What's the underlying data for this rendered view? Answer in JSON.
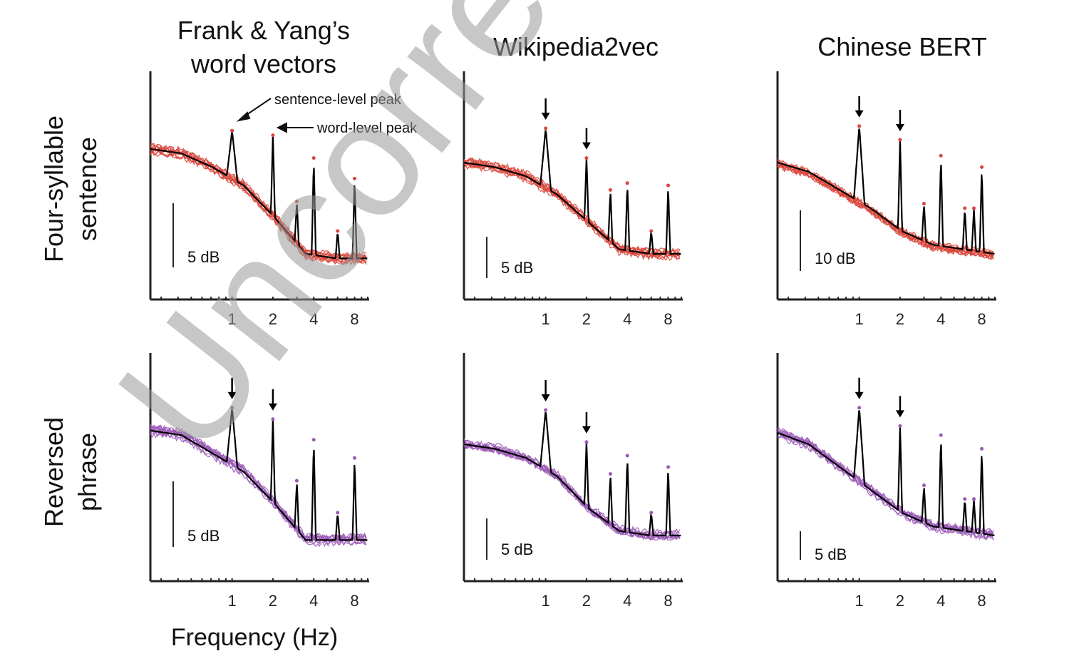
{
  "watermark": "Uncorrected",
  "xlabel": "Frequency (Hz)",
  "columns": [
    {
      "title_lines": [
        "Frank & Yang’s",
        "word vectors"
      ]
    },
    {
      "title_lines": [
        "Wikipedia2vec"
      ]
    },
    {
      "title_lines": [
        "Chinese BERT"
      ]
    }
  ],
  "rows": [
    {
      "label_lines": [
        "Four-syllable",
        "sentence"
      ],
      "color": "#d9453a"
    },
    {
      "label_lines": [
        "Reversed",
        "phrase"
      ],
      "color": "#9b59b6"
    }
  ],
  "annotations": {
    "sentence_peak": "sentence-level peak",
    "word_peak": "word-level peak"
  },
  "chart_data": [
    {
      "type": "line",
      "row": "Four-syllable sentence",
      "column": "Frank & Yang’s word vectors",
      "x_ticks": [
        "1",
        "2",
        "4",
        "8"
      ],
      "xscale": "log",
      "peaks_hz": [
        1,
        2,
        3,
        4,
        6,
        8
      ],
      "scale_bar": "5 dB",
      "annotations": [
        "sentence-level peak",
        "word-level peak"
      ]
    },
    {
      "type": "line",
      "row": "Four-syllable sentence",
      "column": "Wikipedia2vec",
      "x_ticks": [
        "1",
        "2",
        "4",
        "8"
      ],
      "xscale": "log",
      "peaks_hz": [
        1,
        2,
        3,
        4,
        6,
        8
      ],
      "scale_bar": "5 dB",
      "arrows_hz": [
        1,
        2
      ]
    },
    {
      "type": "line",
      "row": "Four-syllable sentence",
      "column": "Chinese BERT",
      "x_ticks": [
        "1",
        "2",
        "4",
        "8"
      ],
      "xscale": "log",
      "peaks_hz": [
        1,
        2,
        3,
        4,
        6,
        7,
        8
      ],
      "scale_bar": "10 dB",
      "arrows_hz": [
        1,
        2
      ]
    },
    {
      "type": "line",
      "row": "Reversed phrase",
      "column": "Frank & Yang’s word vectors",
      "x_ticks": [
        "1",
        "2",
        "4",
        "8"
      ],
      "xscale": "log",
      "peaks_hz": [
        1,
        2,
        3,
        4,
        6,
        8
      ],
      "scale_bar": "5 dB",
      "arrows_hz": [
        1,
        2
      ]
    },
    {
      "type": "line",
      "row": "Reversed phrase",
      "column": "Wikipedia2vec",
      "x_ticks": [
        "1",
        "2",
        "4",
        "8"
      ],
      "xscale": "log",
      "peaks_hz": [
        1,
        2,
        3,
        4,
        6,
        8
      ],
      "scale_bar": "5 dB",
      "arrows_hz": [
        1,
        2
      ]
    },
    {
      "type": "line",
      "row": "Reversed phrase",
      "column": "Chinese BERT",
      "x_ticks": [
        "1",
        "2",
        "4",
        "8"
      ],
      "xscale": "log",
      "peaks_hz": [
        1,
        2,
        3,
        4,
        6,
        7,
        8
      ],
      "scale_bar": "5 dB",
      "arrows_hz": [
        1,
        2
      ]
    }
  ]
}
